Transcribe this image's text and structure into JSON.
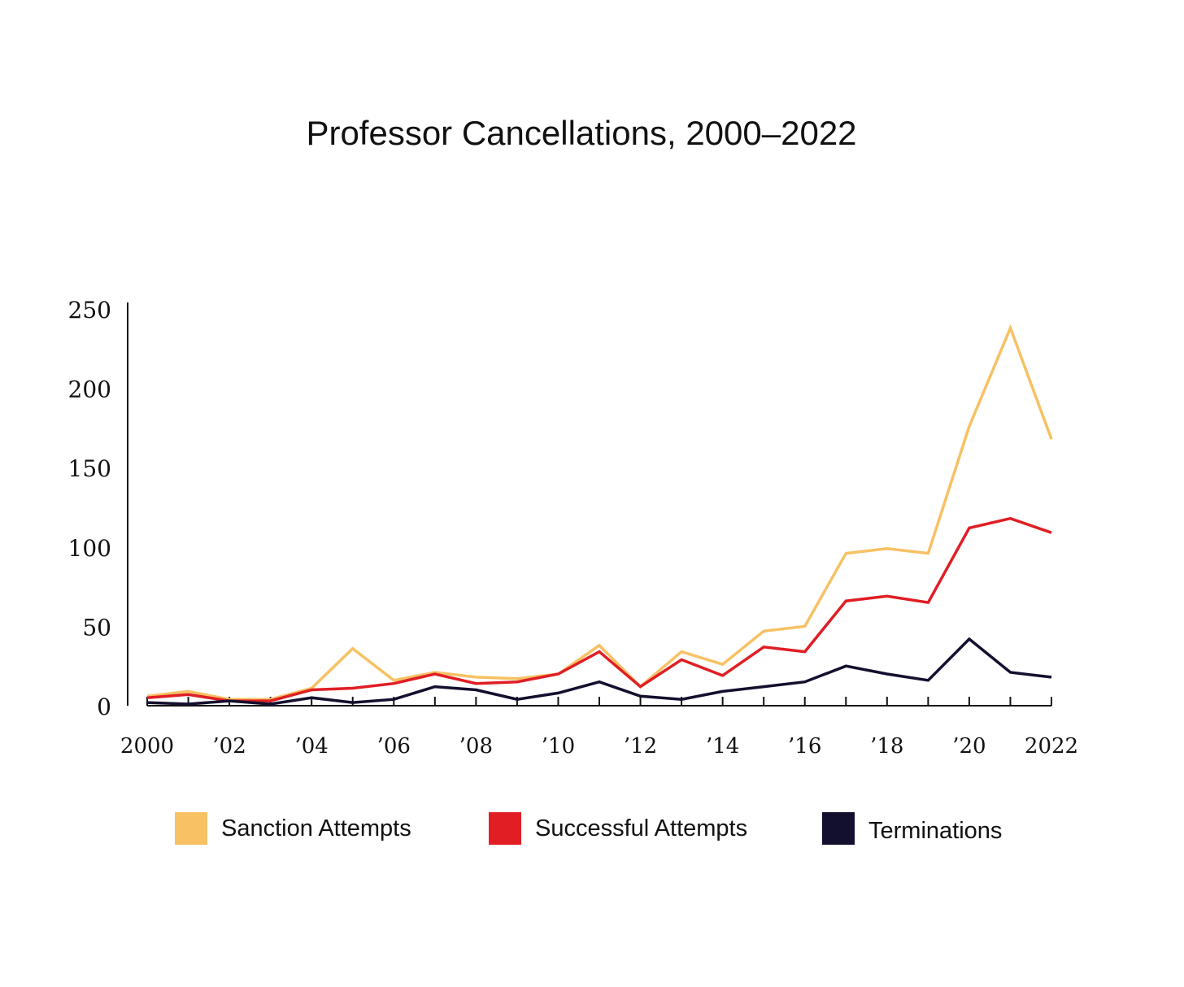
{
  "chart_data": {
    "type": "line",
    "title": "Professor Cancellations, 2000–2022",
    "xlabel": "",
    "ylabel": "",
    "x": [
      2000,
      2001,
      2002,
      2003,
      2004,
      2005,
      2006,
      2007,
      2008,
      2009,
      2010,
      2011,
      2012,
      2013,
      2014,
      2015,
      2016,
      2017,
      2018,
      2019,
      2020,
      2021,
      2022
    ],
    "xticks": [
      2000,
      2002,
      2004,
      2006,
      2008,
      2010,
      2012,
      2014,
      2016,
      2018,
      2020,
      2022
    ],
    "xtick_labels": [
      "2000",
      "’02",
      "’04",
      "’06",
      "’08",
      "’10",
      "’12",
      "’14",
      "’16",
      "’18",
      "’20",
      "2022"
    ],
    "yticks": [
      0,
      50,
      100,
      150,
      200,
      250
    ],
    "ytick_labels": [
      "0",
      "50",
      "100",
      "150",
      "200",
      "250"
    ],
    "ylim": [
      0,
      250
    ],
    "xlim": [
      2000,
      2022
    ],
    "grid": false,
    "legend_position": "bottom",
    "series": [
      {
        "name": "Sanction Attempts",
        "color": "#F7C164",
        "values": [
          6,
          9,
          4,
          4,
          11,
          36,
          16,
          21,
          18,
          17,
          20,
          38,
          12,
          34,
          26,
          47,
          50,
          96,
          99,
          96,
          176,
          238,
          168
        ]
      },
      {
        "name": "Successful Attempts",
        "color": "#E01E24",
        "values": [
          5,
          7,
          3,
          3,
          10,
          11,
          14,
          20,
          14,
          15,
          20,
          34,
          12,
          29,
          19,
          37,
          34,
          66,
          69,
          65,
          112,
          118,
          109
        ]
      },
      {
        "name": "Terminations",
        "color": "#130F2E",
        "values": [
          2,
          1,
          3,
          1,
          5,
          2,
          4,
          12,
          10,
          4,
          8,
          15,
          6,
          4,
          9,
          12,
          15,
          25,
          20,
          16,
          42,
          21,
          18
        ]
      }
    ]
  }
}
